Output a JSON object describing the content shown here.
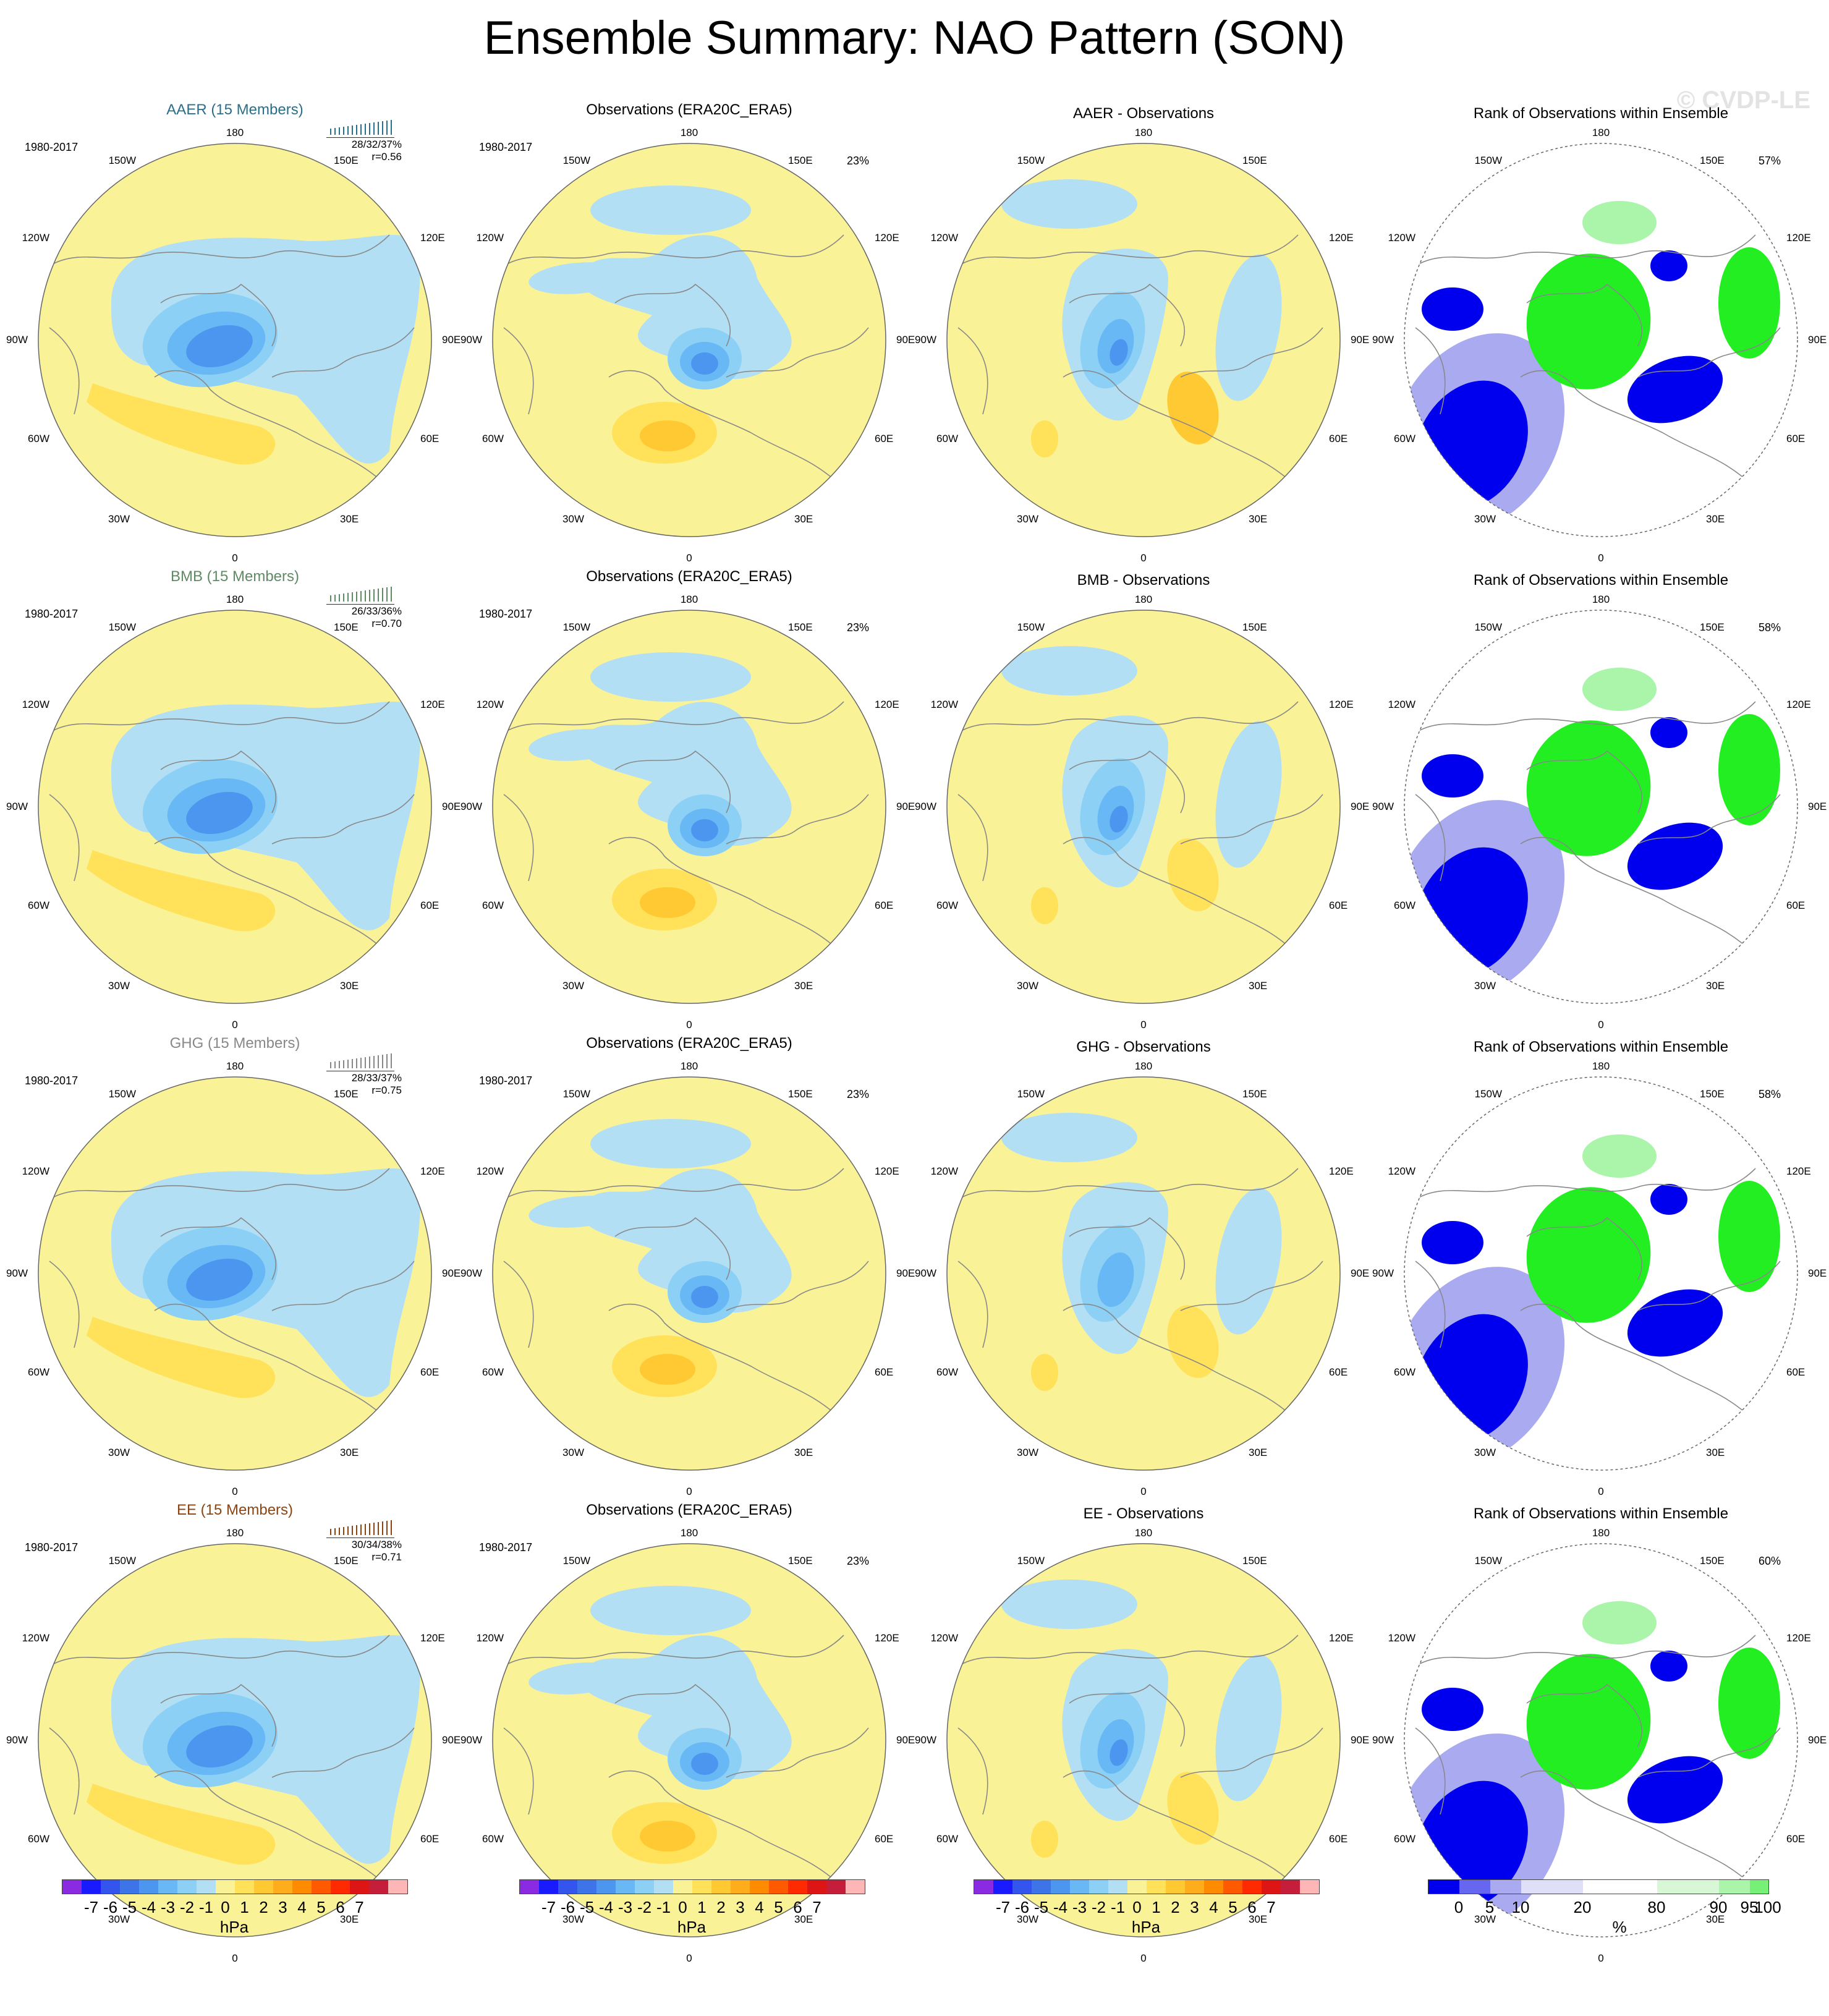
{
  "title": "Ensemble Summary: NAO Pattern (SON)",
  "watermark": "© CVDP-LE",
  "colors": {
    "land_outline": "#888888",
    "circle": "#666666",
    "diverging_scale": [
      "#8a2be2",
      "#1a1aff",
      "#3355ee",
      "#3d75e8",
      "#4d96f0",
      "#67b8f4",
      "#8cd0f5",
      "#b3dff5",
      "#faf296",
      "#ffe15a",
      "#ffc933",
      "#ffad1a",
      "#ff8c00",
      "#ff5a00",
      "#ff2a00",
      "#dd1515",
      "#c41e3a",
      "#ffb6b6"
    ],
    "rank_scale": [
      "#0000ee",
      "#6666f0",
      "#aaaaf0",
      "#dfdff8",
      "#ffffff",
      "#d7f7d7",
      "#aaf5aa",
      "#77f077",
      "#22ee22"
    ]
  },
  "lat_lon_labels": {
    "top": "180",
    "bottom": "0",
    "left": [
      "150W",
      "120W",
      "90W",
      "60W",
      "30W"
    ],
    "right": [
      "150E",
      "120E",
      "90E",
      "60E",
      "30E"
    ]
  },
  "rows": [
    {
      "ensemble": {
        "title": "AAER (15 Members)",
        "title_color": "#2a6f8a",
        "years": "1980-2017",
        "stats_line1": "28/32/37%",
        "stats_line2": "r=0.56",
        "bar_color": "#2a6f8a"
      },
      "obs": {
        "title": "Observations (ERA20C_ERA5)",
        "years": "1980-2017",
        "pct": "23%"
      },
      "diff": {
        "title": "AAER - Observations"
      },
      "rank": {
        "title": "Rank of Observations within Ensemble",
        "pct": "57%"
      }
    },
    {
      "ensemble": {
        "title": "BMB (15 Members)",
        "title_color": "#5f8a64",
        "years": "1980-2017",
        "stats_line1": "26/33/36%",
        "stats_line2": "r=0.70",
        "bar_color": "#5f8a64"
      },
      "obs": {
        "title": "Observations (ERA20C_ERA5)",
        "years": "1980-2017",
        "pct": "23%"
      },
      "diff": {
        "title": "BMB - Observations"
      },
      "rank": {
        "title": "Rank of Observations within Ensemble",
        "pct": "58%"
      }
    },
    {
      "ensemble": {
        "title": "GHG (15 Members)",
        "title_color": "#888888",
        "years": "1980-2017",
        "stats_line1": "28/33/37%",
        "stats_line2": "r=0.75",
        "bar_color": "#888888"
      },
      "obs": {
        "title": "Observations (ERA20C_ERA5)",
        "years": "1980-2017",
        "pct": "23%"
      },
      "diff": {
        "title": "GHG - Observations"
      },
      "rank": {
        "title": "Rank of Observations within Ensemble",
        "pct": "58%"
      }
    },
    {
      "ensemble": {
        "title": "EE (15 Members)",
        "title_color": "#8b4513",
        "years": "1980-2017",
        "stats_line1": "30/34/38%",
        "stats_line2": "r=0.71",
        "bar_color": "#8b4513"
      },
      "obs": {
        "title": "Observations (ERA20C_ERA5)",
        "years": "1980-2017",
        "pct": "23%"
      },
      "diff": {
        "title": "EE - Observations"
      },
      "rank": {
        "title": "Rank of Observations within Ensemble",
        "pct": "60%"
      }
    }
  ],
  "colorbars": {
    "hpa_ticks": [
      "-7",
      "-6",
      "-5",
      "-4",
      "-3",
      "-2",
      "-1",
      "0",
      "1",
      "2",
      "3",
      "4",
      "5",
      "6",
      "7"
    ],
    "hpa_unit": "hPa",
    "rank_ticks": [
      "0",
      "5",
      "10",
      "20",
      "80",
      "90",
      "95",
      "100"
    ],
    "rank_unit": "%"
  }
}
